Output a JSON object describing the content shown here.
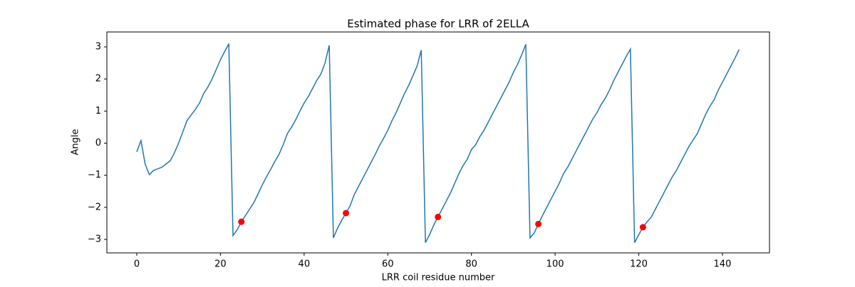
{
  "chart_data": {
    "type": "line",
    "title": "Estimated phase for LRR of 2ELLA",
    "xlabel": "LRR coil residue number",
    "ylabel": "Angle",
    "xlim": [
      -7.15,
      151.25
    ],
    "ylim": [
      -3.42,
      3.465
    ],
    "xticks": [
      0,
      20,
      40,
      60,
      80,
      100,
      120,
      140
    ],
    "yticks": [
      {
        "value": -3,
        "label": "−3"
      },
      {
        "value": -2,
        "label": "−2"
      },
      {
        "value": -1,
        "label": "−1"
      },
      0,
      1,
      2,
      3
    ],
    "series": [
      {
        "color": "#1f77b4",
        "x": [
          0,
          1,
          2,
          3,
          4,
          5,
          6,
          7,
          8,
          9,
          10,
          11,
          12,
          13,
          14,
          15,
          16,
          17,
          18,
          19,
          20,
          21,
          22,
          23,
          24,
          25,
          26,
          27,
          28,
          29,
          30,
          31,
          32,
          33,
          34,
          35,
          36,
          37,
          38,
          39,
          40,
          41,
          42,
          43,
          44,
          45,
          46,
          47,
          48,
          49,
          50,
          51,
          52,
          53,
          54,
          55,
          56,
          57,
          58,
          59,
          60,
          61,
          62,
          63,
          64,
          65,
          66,
          67,
          68,
          69,
          70,
          71,
          72,
          73,
          74,
          75,
          76,
          77,
          78,
          79,
          80,
          81,
          82,
          83,
          84,
          85,
          86,
          87,
          88,
          89,
          90,
          91,
          92,
          93,
          94,
          95,
          96,
          97,
          98,
          99,
          100,
          101,
          102,
          103,
          104,
          105,
          106,
          107,
          108,
          109,
          110,
          111,
          112,
          113,
          114,
          115,
          116,
          117,
          118,
          119,
          120,
          121,
          122,
          123,
          124,
          125,
          126,
          127,
          128,
          129,
          130,
          131,
          132,
          133,
          134,
          135,
          136,
          137,
          138,
          139,
          140,
          141,
          142,
          143,
          144
        ],
        "values": [
          -0.27,
          0.08,
          -0.65,
          -0.98,
          -0.85,
          -0.8,
          -0.75,
          -0.65,
          -0.55,
          -0.3,
          0.0,
          0.35,
          0.7,
          0.88,
          1.05,
          1.25,
          1.55,
          1.75,
          2.0,
          2.3,
          2.6,
          2.85,
          3.1,
          -2.88,
          -2.7,
          -2.45,
          -2.25,
          -2.05,
          -1.85,
          -1.58,
          -1.3,
          -1.05,
          -0.82,
          -0.57,
          -0.35,
          -0.05,
          0.3,
          0.5,
          0.73,
          1.0,
          1.25,
          1.45,
          1.7,
          1.95,
          2.15,
          2.5,
          3.05,
          -2.95,
          -2.65,
          -2.4,
          -2.18,
          -1.95,
          -1.6,
          -1.35,
          -1.1,
          -0.85,
          -0.6,
          -0.35,
          -0.08,
          0.15,
          0.4,
          0.7,
          0.95,
          1.25,
          1.55,
          1.8,
          2.1,
          2.4,
          2.9,
          -3.1,
          -2.85,
          -2.55,
          -2.3,
          -2.05,
          -1.8,
          -1.55,
          -1.25,
          -0.95,
          -0.7,
          -0.5,
          -0.2,
          -0.05,
          0.2,
          0.4,
          0.65,
          0.9,
          1.15,
          1.4,
          1.65,
          1.9,
          2.2,
          2.45,
          2.75,
          3.08,
          -2.95,
          -2.8,
          -2.52,
          -2.25,
          -2.0,
          -1.75,
          -1.5,
          -1.25,
          -0.95,
          -0.75,
          -0.5,
          -0.25,
          0.0,
          0.25,
          0.5,
          0.75,
          0.95,
          1.2,
          1.4,
          1.65,
          1.95,
          2.2,
          2.45,
          2.7,
          2.93,
          -3.1,
          -2.85,
          -2.62,
          -2.45,
          -2.3,
          -2.05,
          -1.8,
          -1.55,
          -1.3,
          -1.05,
          -0.85,
          -0.6,
          -0.35,
          -0.1,
          0.1,
          0.3,
          0.6,
          0.9,
          1.15,
          1.35,
          1.65,
          1.9,
          2.15,
          2.4,
          2.65,
          2.92
        ]
      }
    ],
    "markers": {
      "color": "#ff0000",
      "x": [
        25,
        50,
        72,
        96,
        121
      ],
      "values": [
        -2.45,
        -2.18,
        -2.3,
        -2.52,
        -2.62
      ]
    }
  }
}
